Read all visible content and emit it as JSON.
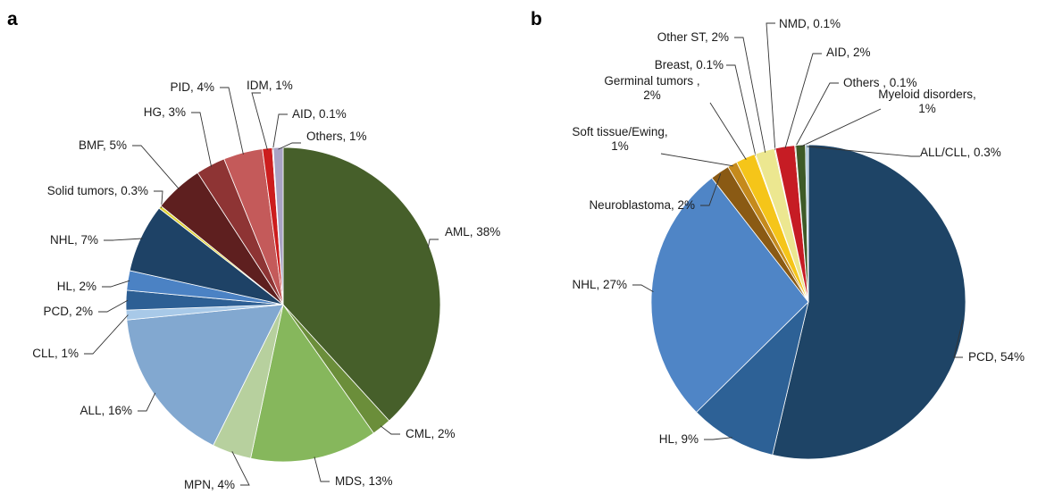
{
  "chart_data": [
    {
      "type": "pie",
      "panel": "a",
      "slices": [
        {
          "label": "AML, 38%",
          "value": 38,
          "color": "#465f2a"
        },
        {
          "label": "CML, 2%",
          "value": 2,
          "color": "#6b8e3a"
        },
        {
          "label": "MDS, 13%",
          "value": 13,
          "color": "#86b75c"
        },
        {
          "label": "MPN, 4%",
          "value": 4,
          "color": "#b7d09e"
        },
        {
          "label": "ALL, 16%",
          "value": 16,
          "color": "#82a8d0"
        },
        {
          "label": "CLL, 1%",
          "value": 1,
          "color": "#a8c9e8"
        },
        {
          "label": "PCD, 2%",
          "value": 2,
          "color": "#2d5f94"
        },
        {
          "label": "HL, 2%",
          "value": 2,
          "color": "#4b82c4"
        },
        {
          "label": "NHL, 7%",
          "value": 7,
          "color": "#1e4266"
        },
        {
          "label": "Solid tumors, 0.3%",
          "value": 0.3,
          "color": "#e2d43a"
        },
        {
          "label": "BMF, 5%",
          "value": 5,
          "color": "#5e1f1f"
        },
        {
          "label": "HG, 3%",
          "value": 3,
          "color": "#8e3434"
        },
        {
          "label": "PID, 4%",
          "value": 4,
          "color": "#c45a5a"
        },
        {
          "label": "IDM, 1%",
          "value": 1,
          "color": "#cc1d1d"
        },
        {
          "label": "AID, 0.1%",
          "value": 0.1,
          "color": "#d9b0b0"
        },
        {
          "label": "Others, 1%",
          "value": 1,
          "color": "#a9a3c4"
        }
      ]
    },
    {
      "type": "pie",
      "panel": "b",
      "slices": [
        {
          "label": "PCD, 54%",
          "value": 54,
          "color": "#1e4466"
        },
        {
          "label": "HL, 9%",
          "value": 9,
          "color": "#2d6196"
        },
        {
          "label": "NHL, 27%",
          "value": 27,
          "color": "#4f85c6"
        },
        {
          "label": "Neuroblastoma, 2%",
          "value": 2,
          "color": "#8a5a14"
        },
        {
          "label": "Soft tissue/Ewing, 1%",
          "value": 1,
          "color": "#c58a1c"
        },
        {
          "label": "Germinal tumors , 2%",
          "value": 2,
          "color": "#f5c519"
        },
        {
          "label": "Breast, 0.1%",
          "value": 0.1,
          "color": "#f6dd55"
        },
        {
          "label": "Other ST, 2%",
          "value": 2,
          "color": "#ece790"
        },
        {
          "label": "NMD, 0.1%",
          "value": 0.1,
          "color": "#e7a1a1"
        },
        {
          "label": "AID, 2%",
          "value": 2,
          "color": "#c61c24"
        },
        {
          "label": "Others , 0.1%",
          "value": 0.1,
          "color": "#7d9a55"
        },
        {
          "label": "Myeloid disorders, 1%",
          "value": 1,
          "color": "#3e5a27"
        },
        {
          "label": "ALL/CLL, 0.3%",
          "value": 0.3,
          "color": "#a9c5dc"
        }
      ]
    }
  ]
}
